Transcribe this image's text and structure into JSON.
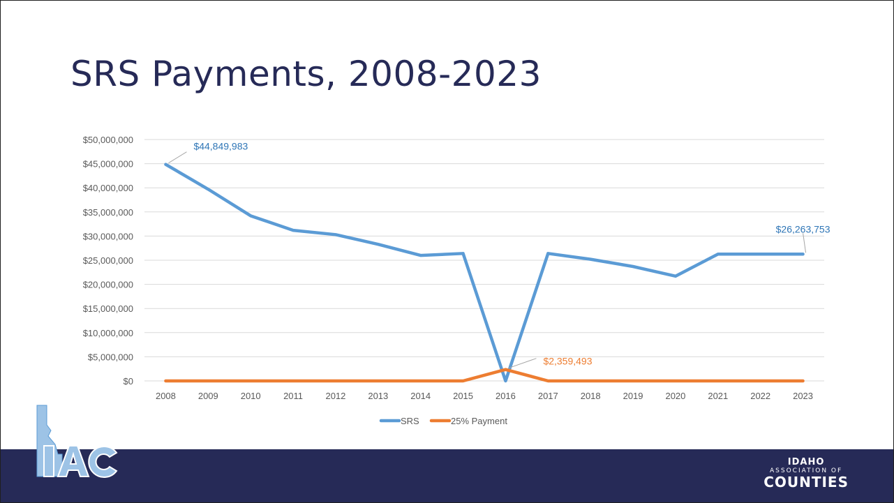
{
  "slide": {
    "title": "SRS Payments, 2008-2023"
  },
  "brand": {
    "line1": "IDAHO",
    "line2": "ASSOCIATION OF",
    "line3": "COUNTIES"
  },
  "logo": {
    "text": "IAC"
  },
  "colors": {
    "srs": "#5b9bd5",
    "payment": "#ed7d31",
    "footer": "#262a57",
    "title": "#262a57"
  },
  "chart_data": {
    "type": "line",
    "categories": [
      "2008",
      "2009",
      "2010",
      "2011",
      "2012",
      "2013",
      "2014",
      "2015",
      "2016",
      "2017",
      "2018",
      "2019",
      "2020",
      "2021",
      "2022",
      "2023"
    ],
    "yticks": [
      "$0",
      "$5,000,000",
      "$10,000,000",
      "$15,000,000",
      "$20,000,000",
      "$25,000,000",
      "$30,000,000",
      "$35,000,000",
      "$40,000,000",
      "$45,000,000",
      "$50,000,000"
    ],
    "ylim": [
      0,
      50000000
    ],
    "grid": true,
    "legend_position": "bottom",
    "series": [
      {
        "name": "SRS",
        "color": "#5b9bd5",
        "values": [
          44849983,
          39700000,
          34200000,
          31200000,
          30300000,
          28300000,
          26000000,
          26400000,
          0,
          26400000,
          25200000,
          23700000,
          21700000,
          26263753,
          26263753,
          26263753
        ]
      },
      {
        "name": "25% Payment",
        "color": "#ed7d31",
        "values": [
          0,
          0,
          0,
          0,
          0,
          0,
          0,
          0,
          2359493,
          0,
          0,
          0,
          0,
          0,
          0,
          0
        ]
      }
    ],
    "annotations": [
      {
        "series": 0,
        "index": 0,
        "text": "$44,849,983",
        "color": "#2e75b6"
      },
      {
        "series": 0,
        "index": 15,
        "text": "$26,263,753",
        "color": "#2e75b6"
      },
      {
        "series": 1,
        "index": 8,
        "text": "$2,359,493",
        "color": "#ed7d31"
      }
    ]
  }
}
